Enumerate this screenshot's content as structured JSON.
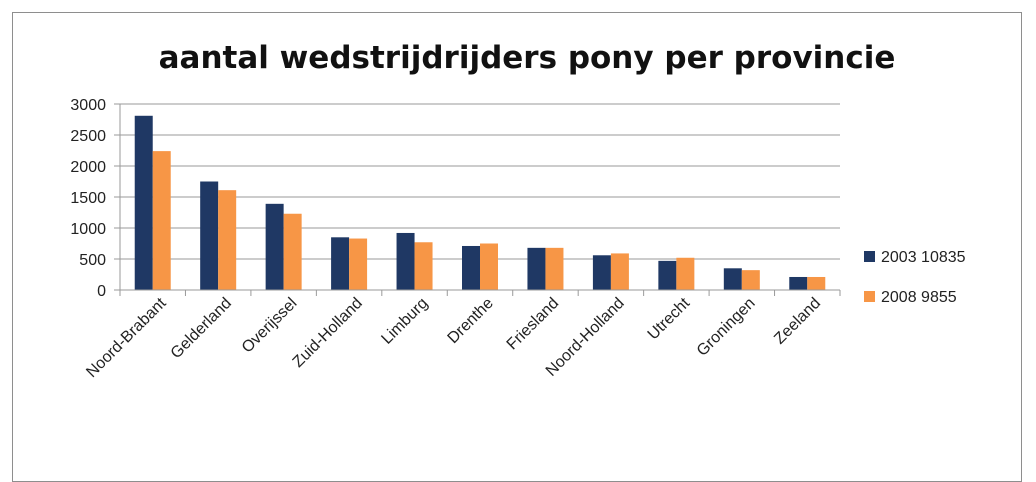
{
  "chart_data": {
    "type": "bar",
    "title": "aantal wedstrijdrijders pony per provincie",
    "xlabel": "",
    "ylabel": "",
    "ylim": [
      0,
      3000
    ],
    "yticks": [
      0,
      500,
      1000,
      1500,
      2000,
      2500,
      3000
    ],
    "grid": true,
    "legend_position": "right",
    "categories": [
      "Noord-Brabant",
      "Gelderland",
      "Overijssel",
      "Zuid-Holland",
      "Limburg",
      "Drenthe",
      "Friesland",
      "Noord-Holland",
      "Utrecht",
      "Groningen",
      "Zeeland"
    ],
    "series": [
      {
        "name": "2003  10835",
        "color": "#1f3864",
        "values": [
          2810,
          1750,
          1390,
          850,
          920,
          710,
          680,
          560,
          470,
          350,
          210
        ]
      },
      {
        "name": "2008  9855",
        "color": "#f79646",
        "values": [
          2240,
          1610,
          1230,
          830,
          770,
          750,
          680,
          590,
          520,
          320,
          210
        ]
      }
    ]
  }
}
